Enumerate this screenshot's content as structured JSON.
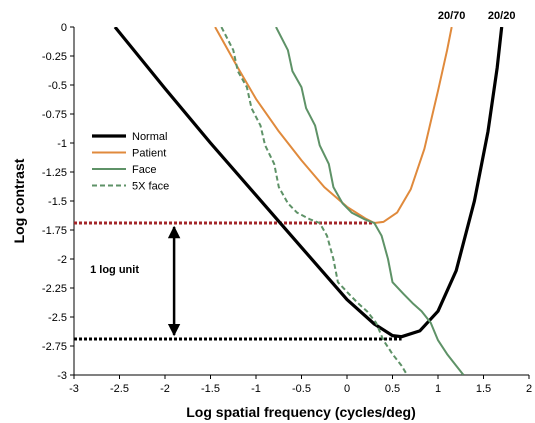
{
  "chart_data": {
    "type": "line",
    "xlabel": "Log spatial frequency (cycles/deg)",
    "ylabel": "Log contrast",
    "xlim": [
      -3,
      2
    ],
    "ylim": [
      -3,
      0
    ],
    "x_ticks": [
      "-3",
      "-2.5",
      "-2",
      "-1.5",
      "-1",
      "-0.5",
      "0",
      "0.5",
      "1",
      "1.5",
      "2"
    ],
    "y_ticks": [
      "0",
      "-0.25",
      "-0.5",
      "-0.75",
      "-1",
      "-1.25",
      "-1.5",
      "-1.75",
      "-2",
      "-2.25",
      "-2.5",
      "-2.75",
      "-3"
    ],
    "grid": false,
    "legend_position": "left",
    "series": [
      {
        "name": "Normal",
        "color": "#000000",
        "style": "solid",
        "points": [
          [
            -2.55,
            0
          ],
          [
            -2.0,
            -0.53
          ],
          [
            -1.5,
            -1.0
          ],
          [
            -1.0,
            -1.45
          ],
          [
            -0.5,
            -1.9
          ],
          [
            0.0,
            -2.35
          ],
          [
            0.3,
            -2.56
          ],
          [
            0.5,
            -2.66
          ],
          [
            0.6,
            -2.67
          ],
          [
            0.8,
            -2.62
          ],
          [
            1.0,
            -2.45
          ],
          [
            1.2,
            -2.1
          ],
          [
            1.4,
            -1.5
          ],
          [
            1.55,
            -0.9
          ],
          [
            1.65,
            -0.35
          ],
          [
            1.7,
            0
          ]
        ]
      },
      {
        "name": "Patient",
        "color": "#e08a3c",
        "style": "solid",
        "points": [
          [
            -1.45,
            0
          ],
          [
            -1.2,
            -0.35
          ],
          [
            -1.0,
            -0.62
          ],
          [
            -0.75,
            -0.9
          ],
          [
            -0.5,
            -1.15
          ],
          [
            -0.25,
            -1.38
          ],
          [
            0.0,
            -1.55
          ],
          [
            0.2,
            -1.65
          ],
          [
            0.3,
            -1.69
          ],
          [
            0.4,
            -1.68
          ],
          [
            0.55,
            -1.6
          ],
          [
            0.7,
            -1.4
          ],
          [
            0.85,
            -1.05
          ],
          [
            1.0,
            -0.55
          ],
          [
            1.1,
            -0.2
          ],
          [
            1.15,
            0
          ]
        ]
      },
      {
        "name": "Face",
        "color": "#5e9267",
        "style": "solid",
        "points": [
          [
            -0.78,
            0
          ],
          [
            -0.65,
            -0.2
          ],
          [
            -0.6,
            -0.38
          ],
          [
            -0.5,
            -0.52
          ],
          [
            -0.45,
            -0.7
          ],
          [
            -0.35,
            -0.85
          ],
          [
            -0.3,
            -1.02
          ],
          [
            -0.2,
            -1.18
          ],
          [
            -0.15,
            -1.38
          ],
          [
            -0.05,
            -1.52
          ],
          [
            0.05,
            -1.6
          ],
          [
            0.2,
            -1.66
          ],
          [
            0.3,
            -1.69
          ],
          [
            0.38,
            -1.8
          ],
          [
            0.45,
            -2.0
          ],
          [
            0.5,
            -2.2
          ],
          [
            0.62,
            -2.3
          ],
          [
            0.72,
            -2.38
          ],
          [
            0.82,
            -2.45
          ],
          [
            0.92,
            -2.55
          ],
          [
            1.0,
            -2.7
          ],
          [
            1.1,
            -2.82
          ],
          [
            1.2,
            -2.92
          ],
          [
            1.28,
            -3
          ]
        ]
      },
      {
        "name": "5X face",
        "color": "#5e9267",
        "style": "dashed",
        "points": [
          [
            -1.38,
            0
          ],
          [
            -1.25,
            -0.2
          ],
          [
            -1.2,
            -0.38
          ],
          [
            -1.1,
            -0.52
          ],
          [
            -1.05,
            -0.7
          ],
          [
            -0.95,
            -0.85
          ],
          [
            -0.9,
            -1.02
          ],
          [
            -0.8,
            -1.18
          ],
          [
            -0.75,
            -1.38
          ],
          [
            -0.65,
            -1.52
          ],
          [
            -0.55,
            -1.6
          ],
          [
            -0.4,
            -1.66
          ],
          [
            -0.3,
            -1.69
          ],
          [
            -0.22,
            -1.8
          ],
          [
            -0.15,
            -2.0
          ],
          [
            -0.1,
            -2.2
          ],
          [
            0.02,
            -2.3
          ],
          [
            0.12,
            -2.38
          ],
          [
            0.22,
            -2.45
          ],
          [
            0.32,
            -2.55
          ],
          [
            0.4,
            -2.7
          ],
          [
            0.5,
            -2.82
          ],
          [
            0.6,
            -2.92
          ],
          [
            0.66,
            -3
          ]
        ]
      }
    ],
    "reference_lines": [
      {
        "y": -1.69,
        "x_from": -3,
        "x_to": 0.3,
        "color": "#a3262a",
        "style": "dotted"
      },
      {
        "y": -2.69,
        "x_from": -3,
        "x_to": 0.6,
        "color": "#000000",
        "style": "dotted"
      }
    ],
    "arrow": {
      "x": -1.9,
      "y_from": -1.69,
      "y_to": -2.69,
      "label": "1 log unit"
    },
    "top_labels": [
      {
        "text": "20/70",
        "x": 1.15
      },
      {
        "text": "20/20",
        "x": 1.7
      }
    ]
  }
}
